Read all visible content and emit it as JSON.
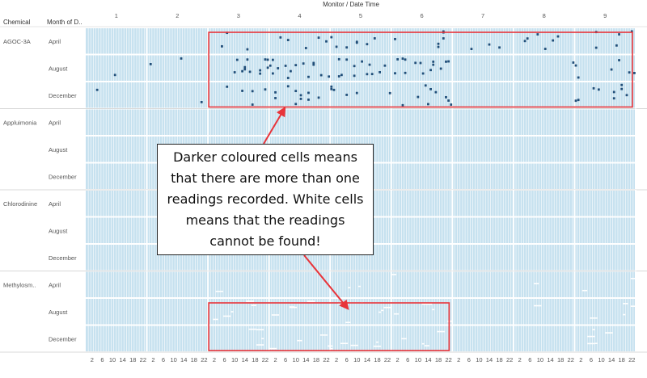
{
  "header": {
    "chemical_col": "Chemical",
    "month_col": "Month of D..",
    "top_title": "Monitor / Date Time"
  },
  "callout_text": "Darker coloured cells means that there are more than one readings recorded. White cells means that the readings cannot be found!",
  "colors": {
    "cell": "#c6e1ef",
    "cell_line": "#ffffff",
    "mark": "#1f4e79",
    "highlight": "#e8343a",
    "grid": "#e4e4e4",
    "text": "#555555"
  },
  "chart_data": {
    "type": "heatmap",
    "title": "Monitor / Date Time",
    "monitors": [
      "1",
      "2",
      "3",
      "4",
      "5",
      "6",
      "7",
      "8",
      "9"
    ],
    "hour_ticks": [
      "2",
      "6",
      "10",
      "14",
      "18",
      "22"
    ],
    "chemicals": [
      {
        "name": "AGOC-3A",
        "months": [
          "April",
          "August",
          "December"
        ]
      },
      {
        "name": "Appluimonia",
        "months": [
          "April",
          "August",
          "December"
        ]
      },
      {
        "name": "Chlorodinine",
        "months": [
          "April",
          "August",
          "December"
        ]
      },
      {
        "name": "Methylosm..",
        "months": [
          "April",
          "August",
          "December"
        ]
      }
    ],
    "dark_cells_note": "more than one reading recorded",
    "white_cells_note": "readings cannot be found",
    "highlight_regions": [
      {
        "chemical": "AGOC-3A",
        "months": [
          "April",
          "August",
          "December"
        ],
        "monitors": [
          "3",
          "9"
        ]
      },
      {
        "chemical": "Methylosm..",
        "months": [
          "August",
          "December"
        ],
        "monitors": [
          "3",
          "6"
        ]
      }
    ],
    "dark_cell_counts": {
      "AGOC-3A": {
        "April": [
          0,
          0,
          3,
          5,
          7,
          6,
          3,
          6,
          5
        ],
        "August": [
          1,
          2,
          12,
          14,
          12,
          14,
          0,
          1,
          6
        ],
        "December": [
          1,
          1,
          5,
          10,
          6,
          9,
          0,
          0,
          9
        ]
      }
    },
    "white_cell_counts": {
      "Methylosm..": {
        "April": [
          0,
          0,
          1,
          0,
          2,
          1,
          0,
          1,
          2
        ],
        "August": [
          0,
          0,
          5,
          4,
          6,
          5,
          0,
          1,
          4
        ],
        "December": [
          0,
          0,
          4,
          4,
          5,
          4,
          0,
          0,
          5
        ]
      }
    }
  }
}
